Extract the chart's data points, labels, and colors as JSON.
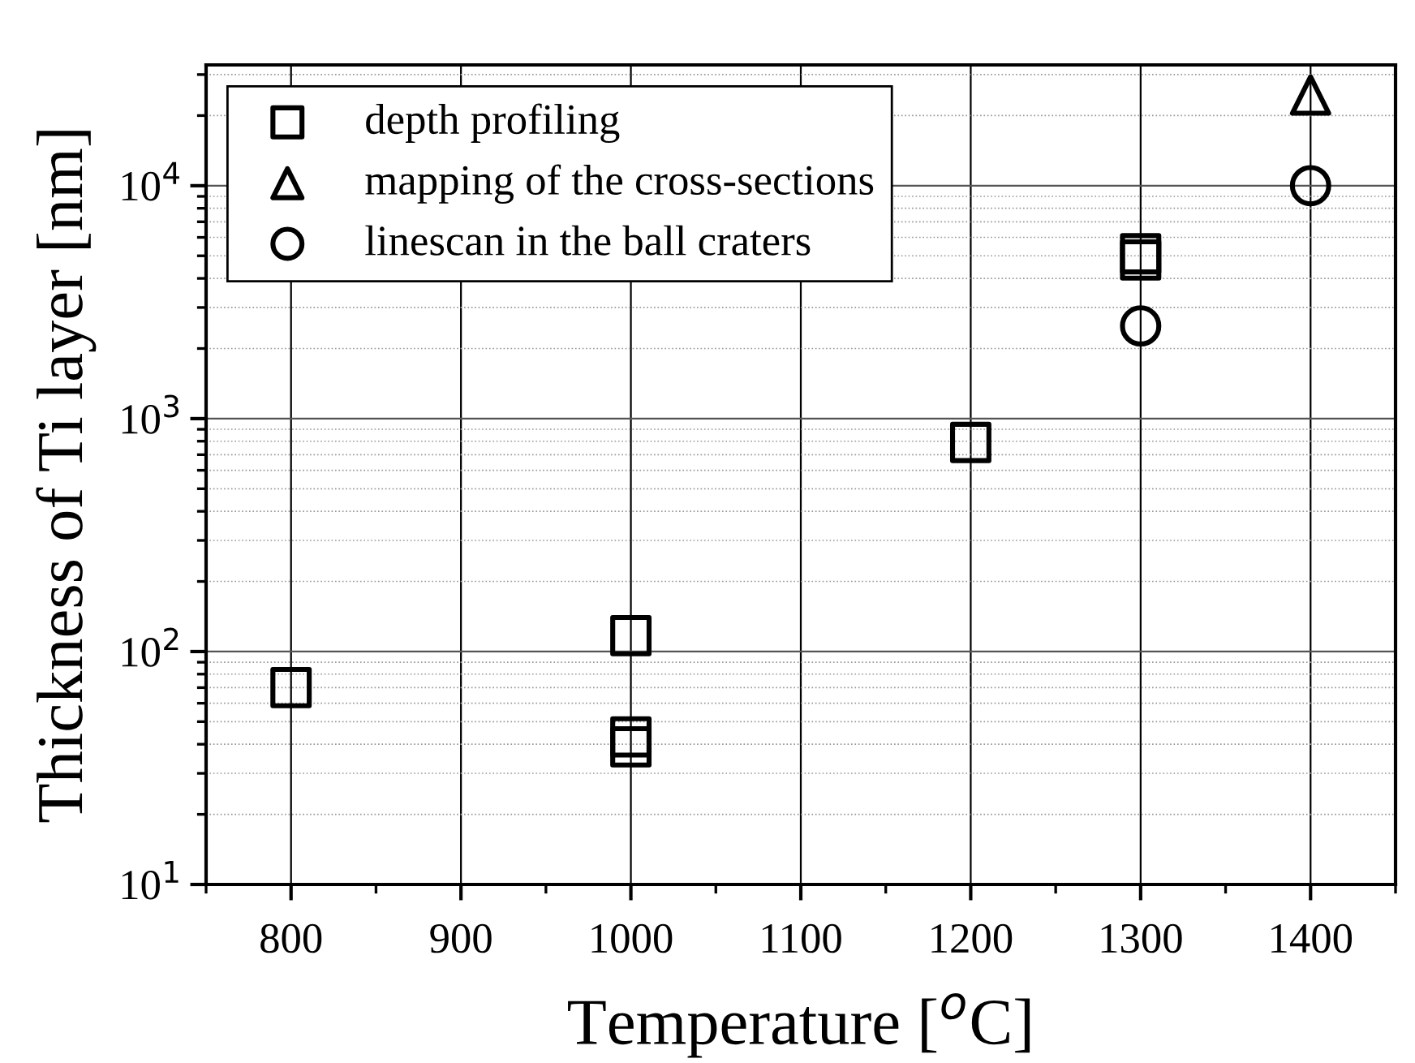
{
  "chart_data": {
    "type": "scatter",
    "xlabel": "Temperature [$^{o}$C]",
    "ylabel": "Thickness of Ti layer [nm]",
    "log": "y",
    "grid": true,
    "legend": "top left",
    "xlim": [
      750,
      1450
    ],
    "xticks": [
      800,
      900,
      1000,
      1100,
      1200,
      1300,
      1400
    ],
    "ylim": [
      10,
      33000
    ],
    "yticks": [
      {
        "value": 10,
        "label": "10$^{1}$"
      },
      {
        "value": 100,
        "label": "10$^{2}$"
      },
      {
        "value": 1000,
        "label": "10$^{3}$"
      },
      {
        "value": 10000,
        "label": "10$^{4}$"
      }
    ],
    "series": [
      {
        "name": "depth profiling",
        "color": "#000000",
        "marker": "square",
        "x": [
          800,
          1000,
          1000,
          1000,
          1200,
          1300,
          1300
        ],
        "values": [
          70,
          117,
          43,
          39,
          790,
          5100,
          4800
        ]
      },
      {
        "name": "mapping of the cross-sections",
        "color": "#000000",
        "marker": "triangle",
        "x": [
          1400
        ],
        "values": [
          24500
        ]
      },
      {
        "name": "linescan in the ball craters",
        "color": "#000000",
        "marker": "circle",
        "x": [
          1300,
          1400
        ],
        "values": [
          2500,
          10000
        ]
      }
    ]
  }
}
